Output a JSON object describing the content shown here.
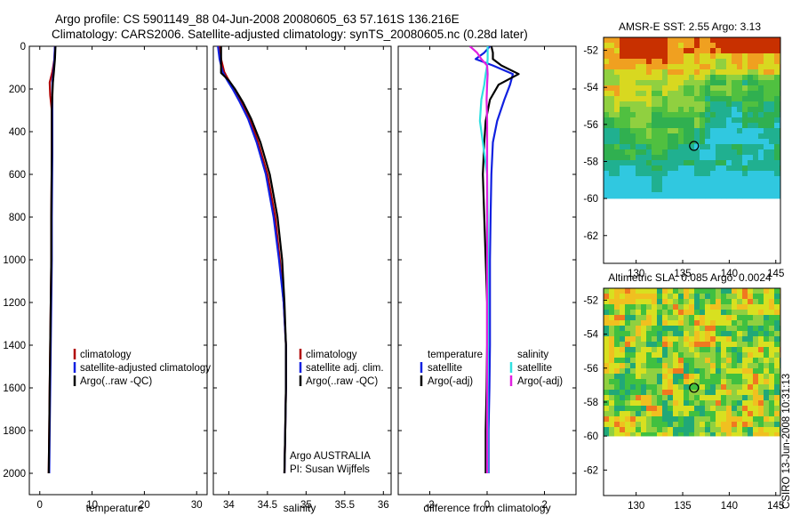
{
  "title": {
    "line1": "Argo profile: CS 5901149_88 04-Jun-2008 20080605_63 57.161S 136.216E",
    "line2": "Climatology: CARS2006. Satellite-adjusted climatology: synTS_20080605.nc (0.28d later)"
  },
  "stamp": "CSIRO 13-Jun-2008 10:31:13",
  "colors": {
    "climatology": "#b00000",
    "satellite": "#1020e0",
    "argo": "#000000",
    "salinity_satellite": "#30e0e0",
    "salinity_argo": "#e020e0",
    "nodata": "#ffffff"
  },
  "chart_data": [
    {
      "type": "line",
      "name": "temperature-profile",
      "xlabel": "temperature",
      "ylabel": "",
      "xlim": [
        -2,
        32
      ],
      "ylim": [
        2100,
        0
      ],
      "xticks": [
        0,
        10,
        20,
        30
      ],
      "yticks": [
        0,
        200,
        400,
        600,
        800,
        1000,
        1200,
        1400,
        1600,
        1800,
        2000
      ],
      "legend": {
        "position": "lower-right",
        "entries": [
          "climatology",
          "satellite-adjusted climatology",
          "Argo(..raw -QC)"
        ]
      },
      "series": [
        {
          "name": "climatology",
          "color": "climatology",
          "x": [
            2.9,
            2.8,
            2.4,
            1.9,
            2.0,
            2.3,
            2.3,
            2.2,
            2.2,
            2.1,
            2.0,
            1.9,
            1.8,
            1.7
          ],
          "y": [
            0,
            60,
            120,
            170,
            230,
            300,
            500,
            800,
            1000,
            1200,
            1400,
            1600,
            1800,
            2000
          ]
        },
        {
          "name": "satellite-adjusted climatology",
          "color": "satellite",
          "x": [
            2.9,
            2.8,
            2.6,
            2.4,
            2.4,
            2.4,
            2.4,
            2.3,
            2.3,
            2.2,
            2.1,
            2.0,
            1.9,
            1.8
          ],
          "y": [
            0,
            60,
            120,
            170,
            230,
            300,
            500,
            800,
            1000,
            1200,
            1400,
            1600,
            1800,
            2000
          ]
        },
        {
          "name": "Argo(..raw -QC)",
          "color": "argo",
          "x": [
            3.0,
            2.9,
            2.7,
            2.5,
            2.4,
            2.3,
            2.3,
            2.2,
            2.2,
            2.1,
            2.0,
            1.9,
            1.8,
            1.7
          ],
          "y": [
            0,
            60,
            120,
            170,
            230,
            300,
            500,
            800,
            1000,
            1200,
            1400,
            1600,
            1800,
            2000
          ]
        }
      ]
    },
    {
      "type": "line",
      "name": "salinity-profile",
      "xlabel": "salinity",
      "ylabel": "",
      "xlim": [
        33.8,
        36.1
      ],
      "ylim": [
        2100,
        0
      ],
      "xticks": [
        34,
        34.5,
        35,
        35.5,
        36
      ],
      "xticklabels": [
        "34",
        "34.5",
        "35",
        "35.5",
        "36"
      ],
      "legend": {
        "position": "lower-right",
        "entries": [
          "climatology",
          "satellite adj. clim.",
          "Argo(..raw -QC)"
        ]
      },
      "annotation": [
        "Argo AUSTRALIA",
        "PI: Susan Wijffels"
      ],
      "series": [
        {
          "name": "climatology",
          "color": "climatology",
          "x": [
            33.88,
            33.9,
            33.94,
            34.0,
            34.07,
            34.16,
            34.27,
            34.38,
            34.5,
            34.6,
            34.66,
            34.71,
            34.74,
            34.74,
            34.73,
            34.72
          ],
          "y": [
            0,
            60,
            120,
            160,
            200,
            260,
            340,
            450,
            600,
            800,
            1000,
            1200,
            1400,
            1600,
            1800,
            2000
          ]
        },
        {
          "name": "satellite adj. clim.",
          "color": "satellite",
          "x": [
            33.86,
            33.88,
            33.92,
            33.98,
            34.05,
            34.14,
            34.25,
            34.36,
            34.48,
            34.58,
            34.65,
            34.71,
            34.74,
            34.74,
            34.73,
            34.72
          ],
          "y": [
            0,
            60,
            120,
            160,
            200,
            260,
            340,
            450,
            600,
            800,
            1000,
            1200,
            1400,
            1600,
            1800,
            2000
          ]
        },
        {
          "name": "Argo(..raw -QC)",
          "color": "argo",
          "x": [
            33.9,
            33.9,
            33.9,
            34.0,
            34.08,
            34.18,
            34.29,
            34.41,
            34.53,
            34.63,
            34.69,
            34.72,
            34.74,
            34.74,
            34.73,
            34.72
          ],
          "y": [
            0,
            60,
            125,
            160,
            200,
            260,
            340,
            450,
            600,
            800,
            1000,
            1200,
            1400,
            1600,
            1800,
            2000
          ]
        }
      ]
    },
    {
      "type": "line",
      "name": "difference-profile",
      "xlabel": "difference from climatology",
      "ylabel": "",
      "xlim": [
        -3.1,
        3.1
      ],
      "ylim": [
        2100,
        0
      ],
      "xticks": [
        -2,
        0,
        2
      ],
      "legend": {
        "position": "lower-center",
        "headers": [
          "temperature",
          "salinity"
        ],
        "entries": [
          "satellite",
          "Argo(-adj)",
          "satellite",
          "Argo(-adj)"
        ]
      },
      "series": [
        {
          "name": "satellite",
          "group": "temperature",
          "color": "satellite",
          "x": [
            0.1,
            -0.1,
            -0.4,
            0.2,
            0.9,
            0.8,
            0.6,
            0.35,
            0.2,
            0.15,
            0.12,
            0.1,
            0.1,
            0.1,
            0.08,
            0.05,
            0.05
          ],
          "y": [
            0,
            30,
            60,
            90,
            130,
            180,
            250,
            350,
            450,
            600,
            800,
            1000,
            1200,
            1400,
            1600,
            1800,
            2000
          ]
        },
        {
          "name": "Argo(-adj)",
          "group": "temperature",
          "color": "argo",
          "x": [
            0.15,
            0.2,
            0.2,
            0.5,
            1.1,
            0.4,
            0.1,
            -0.05,
            -0.1,
            -0.15,
            -0.1,
            -0.05,
            0.0,
            0.0,
            -0.02,
            -0.05,
            -0.05
          ],
          "y": [
            0,
            30,
            60,
            90,
            130,
            180,
            250,
            350,
            450,
            600,
            800,
            1000,
            1200,
            1400,
            1600,
            1800,
            2000
          ]
        },
        {
          "name": "satellite",
          "group": "salinity",
          "color": "salinity_satellite",
          "x": [
            0.02,
            0.02,
            0.02,
            0.0,
            -0.05,
            -0.1,
            -0.2,
            -0.25,
            -0.15,
            0.0,
            0.02,
            0.03,
            0.03,
            0.03,
            0.02,
            0.02,
            0.02
          ],
          "y": [
            0,
            30,
            60,
            90,
            130,
            180,
            250,
            350,
            450,
            600,
            800,
            1000,
            1200,
            1400,
            1600,
            1800,
            2000
          ]
        },
        {
          "name": "Argo(-adj)",
          "group": "salinity",
          "color": "salinity_argo",
          "x": [
            -0.6,
            -0.35,
            -0.2,
            0.0,
            0.02,
            0.0,
            -0.02,
            0.0,
            0.0,
            0.0,
            0.0,
            0.0,
            0.0,
            0.0,
            0.0,
            0.0,
            0.0
          ],
          "y": [
            0,
            30,
            60,
            90,
            130,
            180,
            250,
            350,
            450,
            600,
            800,
            1000,
            1200,
            1400,
            1600,
            1800,
            2000
          ]
        }
      ]
    },
    {
      "type": "heatmap",
      "name": "amsr-sst-map",
      "title": "AMSR-E SST: 2.55 Argo: 3.13",
      "xlim": [
        126.5,
        145.5
      ],
      "ylim": [
        -63.5,
        -51.3
      ],
      "xticks": [
        130,
        135,
        140,
        145
      ],
      "yticks": [
        -52,
        -54,
        -56,
        -58,
        -60,
        -62
      ],
      "data_ylim": [
        -60,
        -51.3
      ],
      "marker": {
        "lon": 136.216,
        "lat": -57.161
      }
    },
    {
      "type": "heatmap",
      "name": "altimetric-sla-map",
      "title": "Altimetric SLA: 0.085 Argo: 0.0024",
      "xlim": [
        126.5,
        145.5
      ],
      "ylim": [
        -63.5,
        -51.3
      ],
      "xticks": [
        130,
        135,
        140,
        145
      ],
      "yticks": [
        -52,
        -54,
        -56,
        -58,
        -60,
        -62
      ],
      "data_ylim": [
        -60,
        -51.3
      ],
      "marker": {
        "lon": 136.216,
        "lat": -57.161
      }
    }
  ]
}
